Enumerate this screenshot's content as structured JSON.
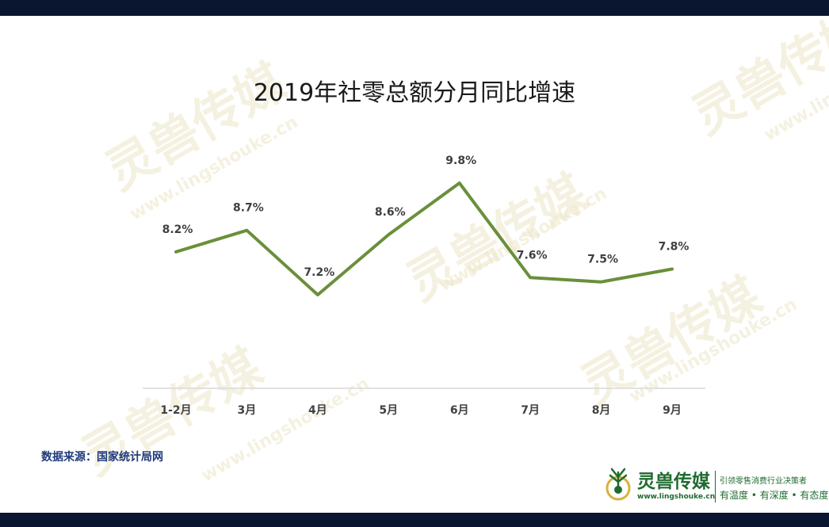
{
  "chart_data": {
    "type": "line",
    "title": "2019年社零总额分月同比增速",
    "categories": [
      "1-2月",
      "3月",
      "4月",
      "5月",
      "6月",
      "7月",
      "8月",
      "9月"
    ],
    "values": [
      8.2,
      8.7,
      7.2,
      8.6,
      9.8,
      7.6,
      7.5,
      7.8
    ],
    "data_labels": [
      "8.2%",
      "8.7%",
      "7.2%",
      "8.6%",
      "9.8%",
      "7.6%",
      "7.5%",
      "7.8%"
    ],
    "xlabel": "",
    "ylabel": "",
    "ylim": [
      6.5,
      10.5
    ],
    "grid": false,
    "line_color": "#6a8f3a"
  },
  "source": "数据来源：国家统计局网",
  "watermark": {
    "name": "灵兽传媒",
    "url": "www.lingshouke.cn"
  },
  "logo": {
    "name": "灵兽传媒",
    "url": "www.lingshouke.cn",
    "slogan1": "引领零售消费行业决策者",
    "slogan2": "有温度 • 有深度 • 有态度"
  },
  "colors": {
    "frame": "#0a1530",
    "brand_green": "#1f6b2f",
    "source_text": "#1e3a7a"
  }
}
